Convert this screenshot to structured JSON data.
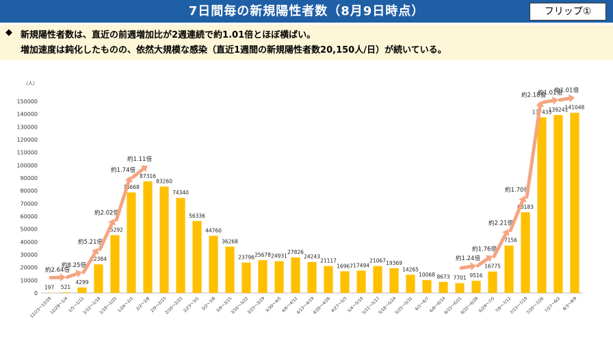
{
  "header": {
    "title": "7日間毎の新規陽性者数（8月9日時点）",
    "flip_label": "フリップ①"
  },
  "summary": {
    "bullet": "◆",
    "line1": "新規陽性者数は、直近の前週増加比が2週連続で約1.01倍とほぼ横ばい。",
    "line2": "増加速度は鈍化したものの、依然大規模な感染（直近1週間の新規陽性者数20,150人/日）が続いている。"
  },
  "colors": {
    "bar": "#ffc000",
    "arrow": "#f4a582",
    "title_bg": "#1f5fa6",
    "summary_bg": "#fdf6d8"
  },
  "chart_data": {
    "type": "bar",
    "unit_label": "（人）",
    "ylim": [
      0,
      150000
    ],
    "ytick_step": 10000,
    "grid": false,
    "categories": [
      "12/23～12/28",
      "12/29～1/4",
      "1/5～1/11",
      "1/12～1/18",
      "1/19～1/25",
      "1/26～2/1",
      "2/2～2/8",
      "2/9～2/15",
      "2/16～2/22",
      "2/23～3/1",
      "3/2～3/8",
      "3/9～3/15",
      "3/16～3/22",
      "3/23～3/29",
      "3/30～4/5",
      "4/6～4/12",
      "4/13～4/19",
      "4/20～4/26",
      "4/27～5/3",
      "5/4～5/10",
      "5/11～5/17",
      "5/18～5/24",
      "5/25～5/31",
      "6/1～6/7",
      "6/8～6/14",
      "6/15～6/21",
      "6/22～6/28",
      "6/29～7/5",
      "7/6～7/12",
      "7/13～7/19",
      "7/20～7/26",
      "7/27～8/2",
      "8/3～8/9"
    ],
    "values": [
      197,
      521,
      4299,
      22384,
      45292,
      78668,
      87316,
      83260,
      74340,
      56336,
      44760,
      36268,
      23796,
      25678,
      24931,
      27826,
      24243,
      21117,
      16967,
      17494,
      21067,
      19369,
      14265,
      10068,
      8673,
      7701,
      9516,
      16775,
      37156,
      63183,
      137433,
      139241,
      141048
    ],
    "annotations": [
      {
        "label": "約2.64倍",
        "from": 0,
        "to": 1
      },
      {
        "label": "約8.25倍",
        "from": 1,
        "to": 2
      },
      {
        "label": "約5.21倍",
        "from": 2,
        "to": 3
      },
      {
        "label": "約2.02倍",
        "from": 3,
        "to": 4
      },
      {
        "label": "約1.74倍",
        "from": 4,
        "to": 5
      },
      {
        "label": "約1.11倍",
        "from": 5,
        "to": 6
      },
      {
        "label": "約1.24倍",
        "from": 25,
        "to": 26
      },
      {
        "label": "約1.76倍",
        "from": 26,
        "to": 27
      },
      {
        "label": "約2.21倍",
        "from": 27,
        "to": 28
      },
      {
        "label": "約1.70倍",
        "from": 28,
        "to": 29
      },
      {
        "label": "約2.18倍",
        "from": 29,
        "to": 30
      },
      {
        "label": "約1.01倍",
        "from": 30,
        "to": 31
      },
      {
        "label": "約1.01倍",
        "from": 31,
        "to": 32
      }
    ]
  }
}
